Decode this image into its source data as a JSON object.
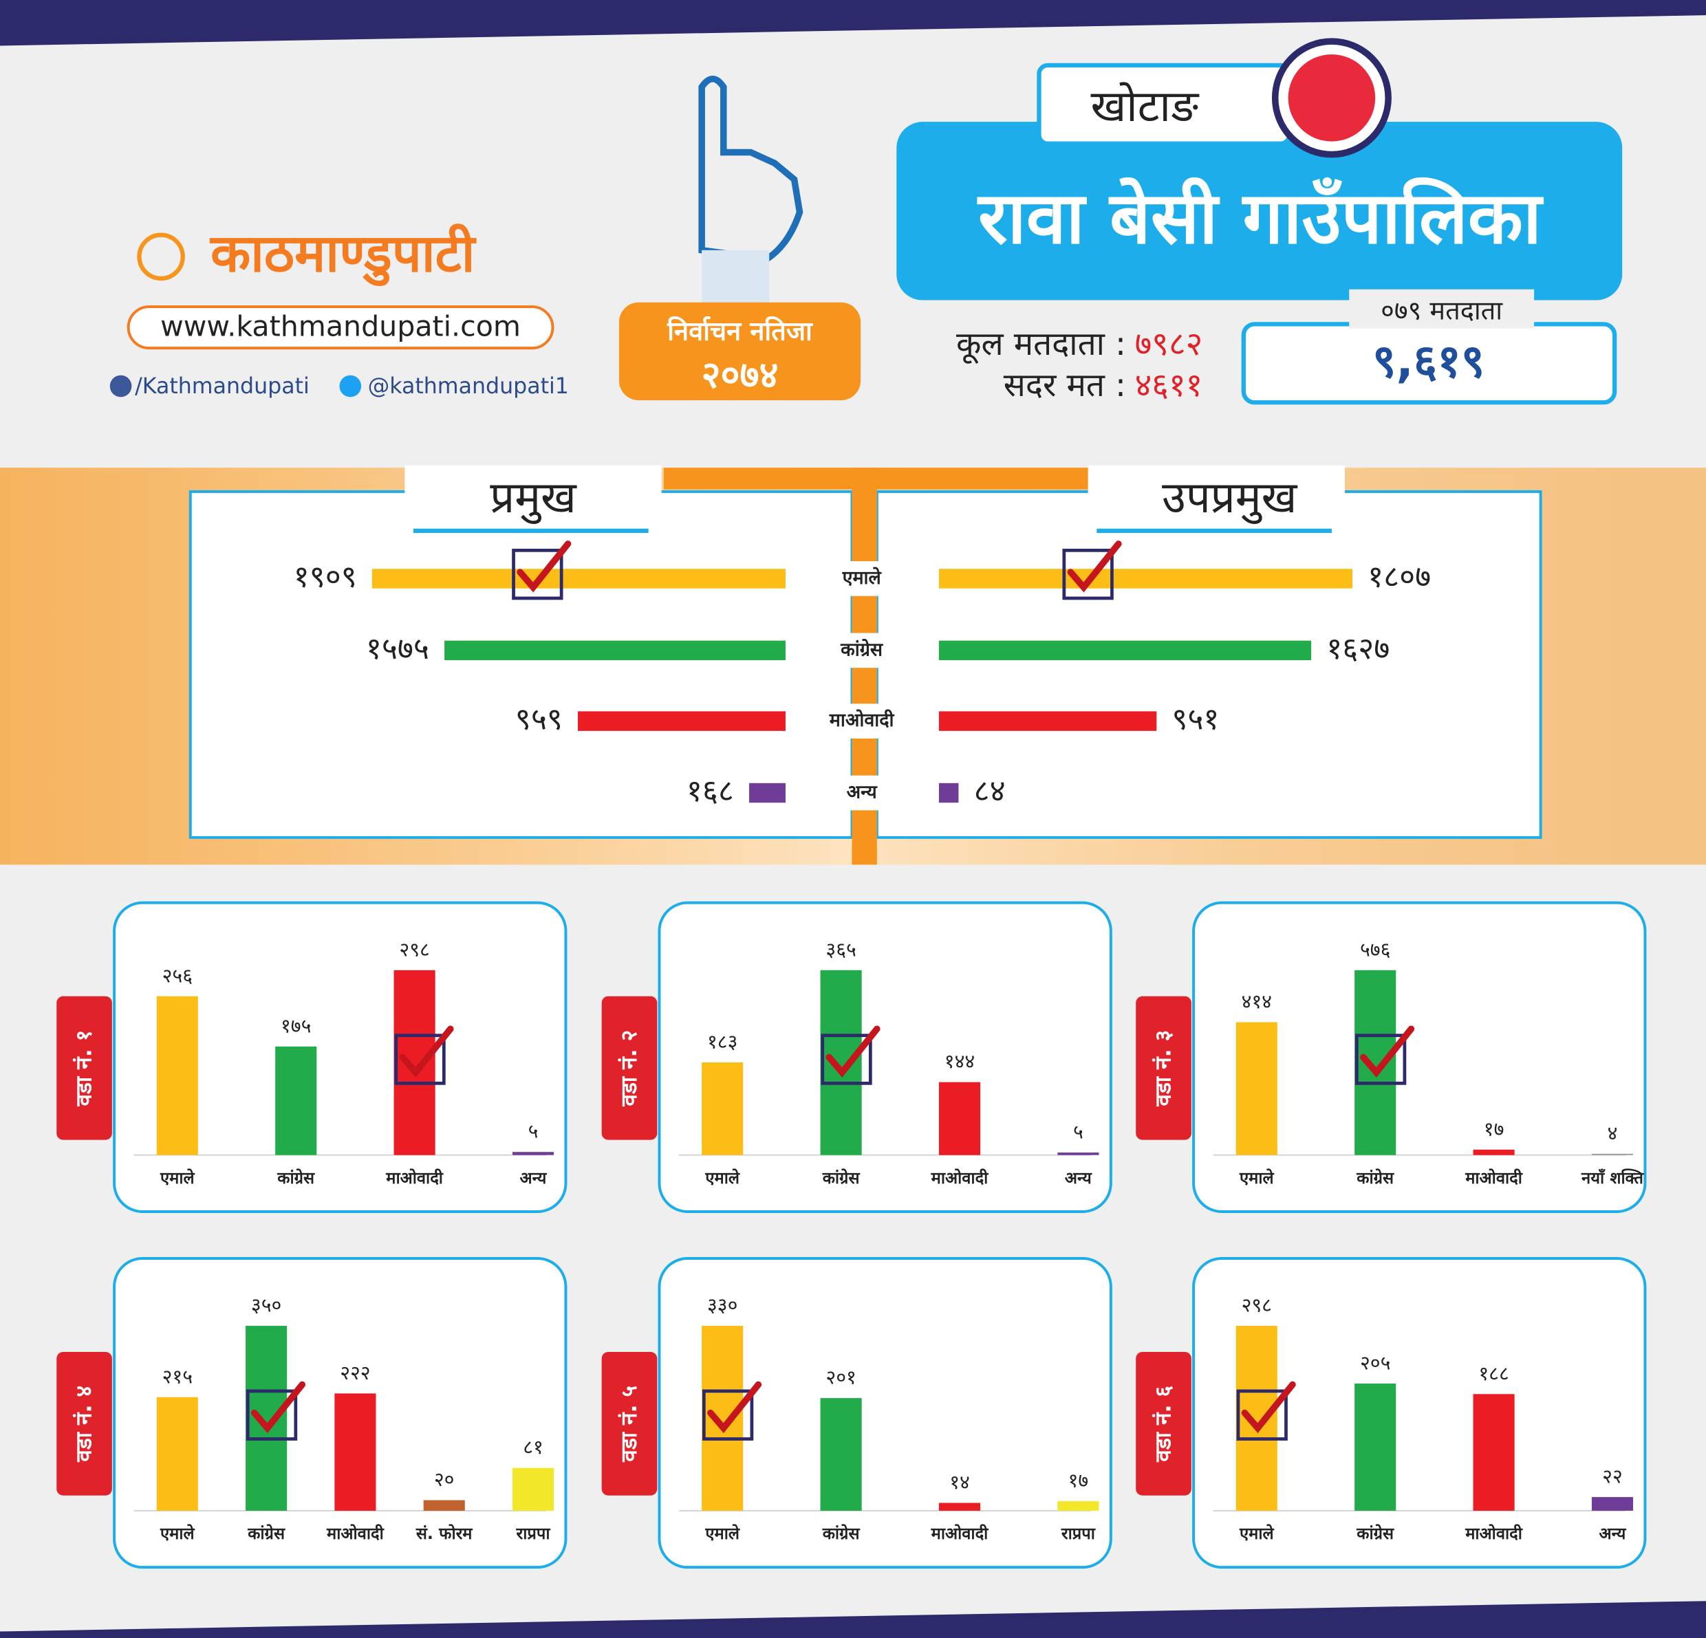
{
  "header": {
    "logo": "काठमाण्डुपाटी",
    "website": "www.kathmandupati.com",
    "facebook": "/Kathmandupati",
    "twitter": "@kathmandupati1",
    "badge_title": "निर्वाचन नतिजा",
    "badge_year": "२०७४",
    "district": "खोटाङ",
    "municipality": "रावा बेसी गाउँपालिका",
    "total_voters_label": "कूल मतदाता :",
    "total_voters": "७९८२",
    "valid_votes_label": "सदर मत :",
    "valid_votes": "४६११",
    "voters_079_label": "०७९ मतदाता",
    "voters_079": "९,६१९"
  },
  "chart_data": [
    {
      "type": "hbar-pair",
      "categories": [
        "एमाले",
        "कांग्रेस",
        "माओवादी",
        "अन्य"
      ],
      "colors": [
        "#fbbd16",
        "#22ab4a",
        "#ec1c24",
        "#6f3c97"
      ],
      "series": [
        {
          "name": "प्रमुख",
          "values": [
            1909,
            1575,
            959,
            168
          ],
          "value_labels": [
            "१९०९",
            "१५७५",
            "९५९",
            "१६८"
          ],
          "winner": 0
        },
        {
          "name": "उपप्रमुख",
          "values": [
            1807,
            1627,
            951,
            84
          ],
          "value_labels": [
            "१८०७",
            "१६२७",
            "९५१",
            "८४"
          ],
          "winner": 0
        }
      ]
    },
    {
      "type": "bar",
      "title": "वडा नं. १",
      "categories": [
        "एमाले",
        "कांग्रेस",
        "माओवादी",
        "अन्य"
      ],
      "values": [
        256,
        175,
        298,
        5
      ],
      "value_labels": [
        "२५६",
        "१७५",
        "२९८",
        "५"
      ],
      "colors": [
        "#fbbd16",
        "#22ab4a",
        "#ec1c24",
        "#6f3c97"
      ],
      "winner": 2
    },
    {
      "type": "bar",
      "title": "वडा नं. २",
      "categories": [
        "एमाले",
        "कांग्रेस",
        "माओवादी",
        "अन्य"
      ],
      "values": [
        183,
        365,
        144,
        5
      ],
      "value_labels": [
        "१८३",
        "३६५",
        "१४४",
        "५"
      ],
      "colors": [
        "#fbbd16",
        "#22ab4a",
        "#ec1c24",
        "#6f3c97"
      ],
      "winner": 1
    },
    {
      "type": "bar",
      "title": "वडा नं. ३",
      "categories": [
        "एमाले",
        "कांग्रेस",
        "माओवादी",
        "नयाँ शक्ति"
      ],
      "values": [
        414,
        576,
        17,
        4
      ],
      "value_labels": [
        "४१४",
        "५७६",
        "१७",
        "४"
      ],
      "colors": [
        "#fbbd16",
        "#22ab4a",
        "#ec1c24",
        "#999999"
      ],
      "winner": 1
    },
    {
      "type": "bar",
      "title": "वडा नं. ४",
      "categories": [
        "एमाले",
        "कांग्रेस",
        "माओवादी",
        "सं. फोरम",
        "राप्रपा"
      ],
      "values": [
        215,
        350,
        222,
        20,
        81
      ],
      "value_labels": [
        "२१५",
        "३५०",
        "२२२",
        "२०",
        "८१"
      ],
      "colors": [
        "#fbbd16",
        "#22ab4a",
        "#ec1c24",
        "#c0622b",
        "#f2e829"
      ],
      "winner": 1
    },
    {
      "type": "bar",
      "title": "वडा नं. ५",
      "categories": [
        "एमाले",
        "कांग्रेस",
        "माओवादी",
        "राप्रपा"
      ],
      "values": [
        330,
        201,
        14,
        17
      ],
      "value_labels": [
        "३३०",
        "२०१",
        "१४",
        "१७"
      ],
      "colors": [
        "#fbbd16",
        "#22ab4a",
        "#ec1c24",
        "#f2e829"
      ],
      "winner": 0
    },
    {
      "type": "bar",
      "title": "वडा नं. ६",
      "categories": [
        "एमाले",
        "कांग्रेस",
        "माओवादी",
        "अन्य"
      ],
      "values": [
        298,
        205,
        188,
        22
      ],
      "value_labels": [
        "२९८",
        "२०५",
        "१८८",
        "२२"
      ],
      "colors": [
        "#fbbd16",
        "#22ab4a",
        "#ec1c24",
        "#6f3c97"
      ],
      "winner": 0
    }
  ]
}
